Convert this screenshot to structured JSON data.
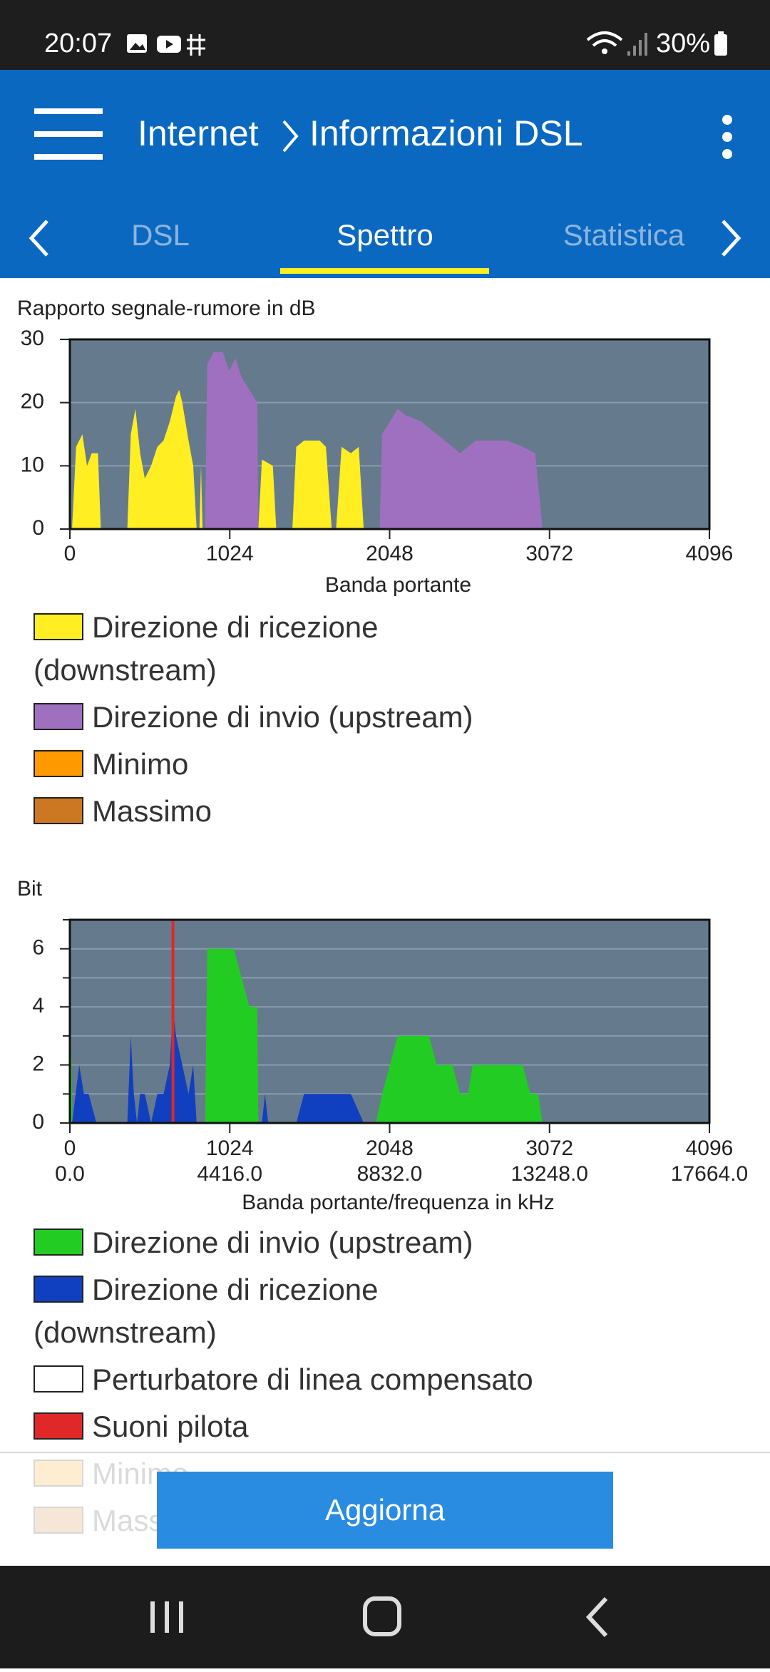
{
  "status_bar": {
    "time": "20:07",
    "battery": "30%"
  },
  "app_bar": {
    "section": "Internet",
    "title": "Informazioni DSL"
  },
  "tabs": [
    "DSL",
    "Spettro",
    "Statistica"
  ],
  "button": "Aggiorna",
  "chart_data": [
    {
      "type": "area",
      "title": "Rapporto segnale-rumore in dB",
      "x_label": "Banda portante",
      "xlim": [
        0,
        4096
      ],
      "xticks": [
        0,
        1024,
        2048,
        3072,
        4096
      ],
      "ylim": [
        0,
        30
      ],
      "yticks": [
        0,
        10,
        20,
        30
      ],
      "grid": true,
      "series": [
        {
          "name": "Direzione di ricezione (downstream)",
          "color": "#ffee22",
          "x": [
            14,
            40,
            80,
            110,
            140,
            180,
            198,
            280,
            368,
            390,
            420,
            450,
            480,
            520,
            560,
            600,
            640,
            680,
            700,
            720,
            760,
            790,
            812,
            821,
            830,
            840,
            850,
            1100,
            1207,
            1230,
            1300,
            1322,
            1370,
            1425,
            1450,
            1500,
            1600,
            1640,
            1677,
            1690,
            1705,
            1740,
            1800,
            1850,
            1882
          ],
          "values": [
            0,
            13,
            15,
            10,
            12,
            12,
            0,
            null,
            0,
            15,
            19,
            12,
            8,
            10,
            13,
            14,
            17,
            21,
            22,
            20,
            14,
            10,
            0,
            null,
            0,
            10,
            0,
            null,
            0,
            11,
            10,
            0,
            null,
            0,
            13,
            14,
            14,
            13,
            0,
            null,
            0,
            13,
            12,
            13,
            0
          ]
        },
        {
          "name": "Direzione di invio (upstream)",
          "color": "#a070c0",
          "x": [
            866,
            880,
            920,
            980,
            1020,
            1060,
            1100,
            1150,
            1200,
            1207,
            1600,
            1984,
            2000,
            2050,
            2100,
            2150,
            2250,
            2350,
            2450,
            2500,
            2550,
            2600,
            2700,
            2800,
            2900,
            2980,
            3027
          ],
          "values": [
            0,
            26,
            28,
            28,
            25,
            27,
            24,
            22,
            20,
            0,
            null,
            0,
            15,
            17,
            19,
            18,
            17,
            15,
            13,
            12,
            13,
            14,
            14,
            14,
            13,
            12,
            0
          ]
        },
        {
          "name": "Minimo",
          "color": "#ff9900",
          "x": [],
          "values": []
        },
        {
          "name": "Massimo",
          "color": "#cc7722",
          "x": [],
          "values": []
        }
      ]
    },
    {
      "type": "area",
      "title": "Bit",
      "x_label": "Banda portante/frequenza in kHz",
      "xlim": [
        0,
        4096
      ],
      "xticks": [
        0,
        1024,
        2048,
        3072,
        4096
      ],
      "x2ticks": [
        {
          "value": 0,
          "label": "0.0"
        },
        {
          "value": 1024,
          "label": "4416.0"
        },
        {
          "value": 2048,
          "label": "8832.0"
        },
        {
          "value": 3072,
          "label": "13248.0"
        },
        {
          "value": 4096,
          "label": "17664.0"
        }
      ],
      "ylim": [
        0,
        7
      ],
      "yticks": [
        0,
        2,
        4,
        6
      ],
      "yminorticks": [
        1,
        3,
        5,
        7
      ],
      "grid": true,
      "series": [
        {
          "name": "Direzione di invio (upstream)",
          "color": "#22cc22",
          "x": [
            0,
            8,
            16,
            40,
            866,
            880,
            1000,
            1050,
            1100,
            1150,
            1200,
            1207,
            1600,
            1960,
            2000,
            2050,
            2100,
            2300,
            2350,
            2450,
            2500,
            2550,
            2580,
            2700,
            2900,
            2950,
            3000,
            3027
          ],
          "values": [
            0,
            3,
            0,
            null,
            0,
            6,
            6,
            6,
            5,
            4,
            4,
            0,
            null,
            0,
            1,
            2,
            3,
            3,
            2,
            2,
            1,
            1,
            2,
            2,
            2,
            1,
            1,
            0
          ]
        },
        {
          "name": "Direzione di ricezione (downstream)",
          "color": "#1040c0",
          "x": [
            14,
            60,
            90,
            120,
            170,
            250,
            368,
            390,
            410,
            430,
            450,
            480,
            520,
            560,
            600,
            640,
            660,
            680,
            720,
            760,
            790,
            812,
            840,
            1230,
            1250,
            1270,
            1350,
            1450,
            1500,
            1600,
            1700,
            1720,
            1800,
            1882
          ],
          "values": [
            0,
            2,
            1,
            1,
            0,
            null,
            0,
            3,
            1,
            0,
            1,
            1,
            0,
            1,
            1,
            2,
            4,
            3,
            2,
            1,
            2,
            0,
            null,
            0,
            1,
            0,
            null,
            0,
            1,
            1,
            1,
            1,
            1,
            0
          ]
        },
        {
          "name": "Perturbatore di linea compensato",
          "color": "#ffffff",
          "x": [],
          "values": []
        },
        {
          "name": "Suoni pilota",
          "color": "#e02828",
          "style": "vline",
          "x": [
            660
          ]
        },
        {
          "name": "Minimo",
          "color": "#ff9900",
          "x": [],
          "values": []
        },
        {
          "name": "Massimo",
          "color": "#cc7722",
          "x": [],
          "values": []
        }
      ]
    }
  ]
}
